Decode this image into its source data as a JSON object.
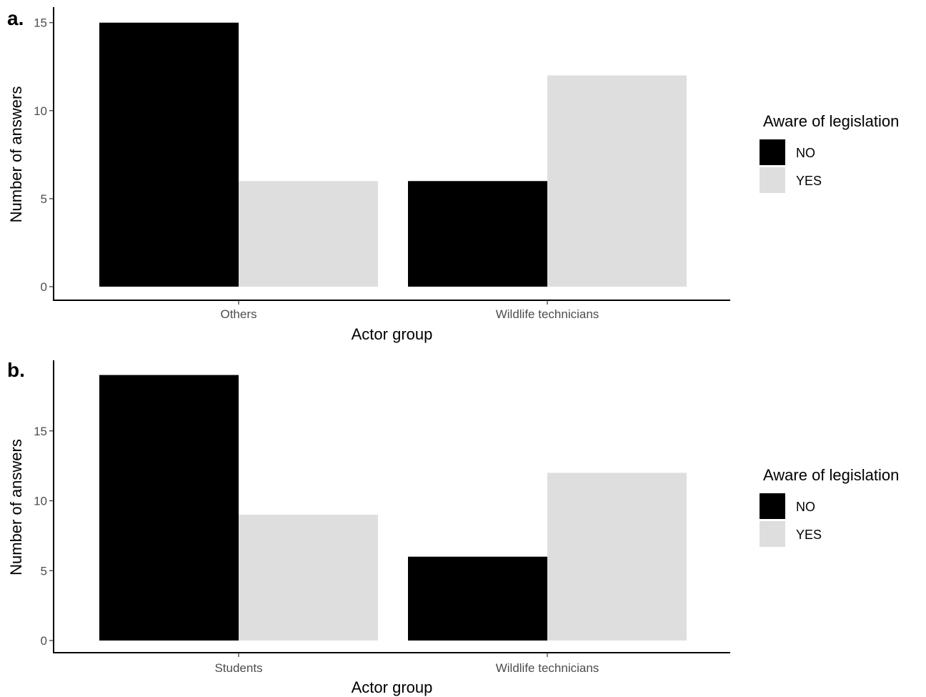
{
  "chart_data": [
    {
      "type": "bar",
      "panel_label": "a.",
      "categories": [
        "Others",
        "Wildlife technicians"
      ],
      "series": [
        {
          "name": "NO",
          "color": "#000000",
          "values": [
            15,
            6
          ]
        },
        {
          "name": "YES",
          "color": "#dedede",
          "values": [
            6,
            12
          ]
        }
      ],
      "xlabel": "Actor group",
      "ylabel": "Number of answers",
      "ylim": [
        0,
        15.8
      ],
      "yticks": [
        0,
        5,
        10,
        15
      ],
      "grid": false,
      "legend": {
        "title": "Aware of legislation",
        "position": "right"
      }
    },
    {
      "type": "bar",
      "panel_label": "b.",
      "categories": [
        "Students",
        "Wildlife technicians"
      ],
      "series": [
        {
          "name": "NO",
          "color": "#000000",
          "values": [
            19,
            6
          ]
        },
        {
          "name": "YES",
          "color": "#dedede",
          "values": [
            9,
            12
          ]
        }
      ],
      "xlabel": "Actor group",
      "ylabel": "Number of answers",
      "ylim": [
        0,
        19.95
      ],
      "yticks": [
        0,
        5,
        10,
        15
      ],
      "grid": false,
      "legend": {
        "title": "Aware of legislation",
        "position": "right"
      }
    }
  ]
}
